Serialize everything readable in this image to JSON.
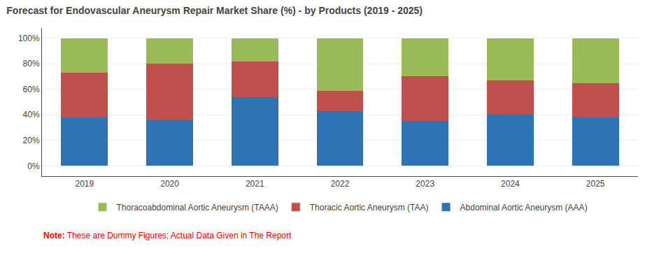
{
  "chart_data": {
    "type": "bar",
    "stacked": true,
    "title": "Forecast for Endovascular Aneurysm Repair Market Share (%) - by Products (2019 - 2025)",
    "categories": [
      "2019",
      "2020",
      "2021",
      "2022",
      "2023",
      "2024",
      "2025"
    ],
    "series": [
      {
        "name": "Abdominal Aortic Aneurysm (AAA)",
        "color": "#2E74B5",
        "values": [
          38,
          36,
          54,
          43,
          35,
          40,
          38
        ]
      },
      {
        "name": "Thoracic Aortic Aneurysm (TAA)",
        "color": "#C0504D",
        "values": [
          35,
          44,
          28,
          16,
          35,
          27,
          27
        ]
      },
      {
        "name": "Thoracoabdominal Aortic Aneurysm (TAAA)",
        "color": "#9BBB59",
        "values": [
          27,
          20,
          18,
          41,
          30,
          33,
          35
        ]
      }
    ],
    "ylim": [
      -8,
      108
    ],
    "yticks": [
      {
        "value": 0,
        "label": "0%"
      },
      {
        "value": 20,
        "label": "20%"
      },
      {
        "value": 40,
        "label": "40%"
      },
      {
        "value": 60,
        "label": "60%"
      },
      {
        "value": 80,
        "label": "80%"
      },
      {
        "value": 100,
        "label": "100%"
      }
    ],
    "grid": true,
    "legend": "bottom",
    "annotations": [
      {
        "text": "Note:",
        "color": "#FF0000"
      },
      {
        "text": " These are Dummy Figures; Actual Data Given in The Report",
        "color": "#FF0000"
      }
    ]
  }
}
